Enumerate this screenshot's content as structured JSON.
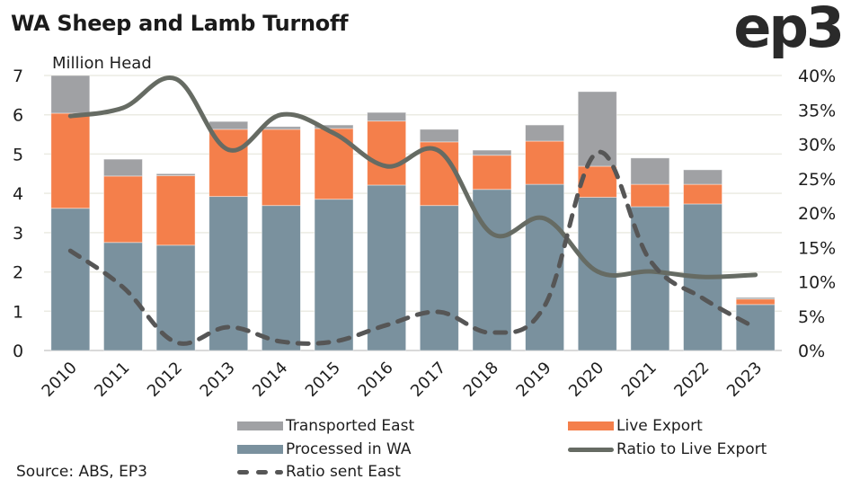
{
  "header": {
    "title": "WA Sheep and Lamb Turnoff",
    "logo": "ep3",
    "unit_label": "Million Head"
  },
  "source": "Source: ABS, EP3",
  "colors": {
    "transported_east": "#a0a1a4",
    "live_export": "#f47f4b",
    "processed_wa": "#7a919e",
    "ratio_live_export": "#666b63",
    "ratio_sent_east": "#565656",
    "grid": "#ebebe3"
  },
  "legend": [
    {
      "key": "transported_east",
      "label": "Transported East",
      "kind": "bar"
    },
    {
      "key": "live_export",
      "label": "Live Export",
      "kind": "bar"
    },
    {
      "key": "processed_wa",
      "label": "Processed in WA",
      "kind": "bar"
    },
    {
      "key": "ratio_live_export",
      "label": "Ratio to Live Export",
      "kind": "line"
    },
    {
      "key": "ratio_sent_east",
      "label": "Ratio sent East",
      "kind": "dashed"
    }
  ],
  "chart_data": {
    "type": "bar",
    "stacked": true,
    "title": "WA Sheep and Lamb Turnoff",
    "ylabel": "Million Head",
    "y2label": "",
    "ylim": [
      0,
      7
    ],
    "y2lim": [
      0,
      40
    ],
    "yticks": [
      "0",
      "1",
      "2",
      "3",
      "4",
      "5",
      "6",
      "7"
    ],
    "y2ticks": [
      "0%",
      "5%",
      "10%",
      "15%",
      "20%",
      "25%",
      "30%",
      "35%",
      "40%"
    ],
    "grid": true,
    "legend_position": "bottom",
    "categories": [
      "2010",
      "2011",
      "2012",
      "2013",
      "2014",
      "2015",
      "2016",
      "2017",
      "2018",
      "2019",
      "2020",
      "2021",
      "2022",
      "2023"
    ],
    "series": [
      {
        "name": "Processed in WA",
        "key": "processed_wa",
        "type": "bar",
        "axis": "left",
        "values": [
          3.62,
          2.75,
          2.68,
          3.92,
          3.69,
          3.85,
          4.21,
          3.69,
          4.1,
          4.23,
          3.9,
          3.66,
          3.73,
          1.17
        ]
      },
      {
        "name": "Live Export",
        "key": "live_export",
        "type": "bar",
        "axis": "left",
        "values": [
          2.42,
          1.69,
          1.77,
          1.71,
          1.94,
          1.8,
          1.63,
          1.62,
          0.87,
          1.1,
          0.79,
          0.57,
          0.5,
          0.14
        ]
      },
      {
        "name": "Transported East",
        "key": "transported_east",
        "type": "bar",
        "axis": "left",
        "values": [
          0.96,
          0.43,
          0.05,
          0.2,
          0.07,
          0.09,
          0.22,
          0.32,
          0.13,
          0.41,
          1.9,
          0.67,
          0.37,
          0.04
        ]
      },
      {
        "name": "Ratio to Live Export",
        "key": "ratio_live_export",
        "type": "line",
        "axis": "right",
        "unit": "%",
        "values": [
          34.1,
          35.3,
          39.5,
          29.2,
          34.3,
          31.6,
          26.8,
          29.0,
          17.0,
          19.2,
          11.5,
          11.5,
          10.7,
          11.0
        ]
      },
      {
        "name": "Ratio sent East",
        "key": "ratio_sent_east",
        "type": "line",
        "style": "dashed",
        "axis": "right",
        "unit": "%",
        "values": [
          14.5,
          9.2,
          1.2,
          3.4,
          1.3,
          1.3,
          3.7,
          5.6,
          2.6,
          6.5,
          28.8,
          13.1,
          7.6,
          3.3
        ]
      }
    ]
  }
}
